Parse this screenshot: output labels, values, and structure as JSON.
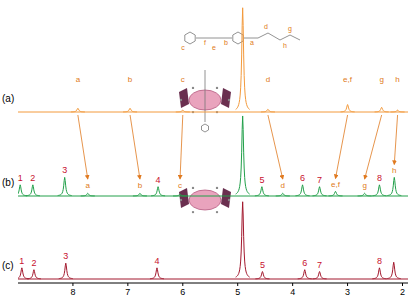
{
  "chart_data": {
    "type": "nmr_stack",
    "xlim": [
      9.0,
      1.9
    ],
    "xticks": [
      8,
      7,
      6,
      5,
      4,
      3,
      2
    ],
    "ylim": [
      0,
      115
    ],
    "tick_labels": "x",
    "series": [
      {
        "name": "(a)",
        "color": "#f39a3c",
        "x": [
          7.91,
          6.96,
          6.0,
          4.91,
          4.45,
          3.0,
          2.38,
          2.09
        ],
        "values": [
          4,
          4,
          2,
          112,
          3,
          8,
          5,
          2
        ],
        "peak_labels": [
          "a",
          "b",
          "c",
          null,
          "d",
          "e,f",
          "g",
          "h"
        ]
      },
      {
        "name": "(b)",
        "color": "#22a04a",
        "x": [
          8.96,
          8.73,
          8.15,
          7.73,
          6.78,
          6.45,
          6.05,
          4.91,
          4.56,
          4.18,
          3.82,
          3.51,
          3.22,
          2.69,
          2.42,
          2.15
        ],
        "values": [
          12,
          12,
          20,
          3,
          3,
          10,
          2,
          86,
          10,
          3,
          12,
          10,
          5,
          3,
          12,
          20
        ],
        "peak_labels": [
          "1",
          "2",
          "3",
          "a",
          "b",
          "4",
          "c",
          null,
          "5",
          "d",
          "6",
          "7",
          "e,f",
          "g",
          "8",
          "h"
        ]
      },
      {
        "name": "(c)",
        "color": "#a3192e",
        "x": [
          8.93,
          8.71,
          8.13,
          6.47,
          4.91,
          4.55,
          3.78,
          3.51,
          2.42,
          2.16
        ],
        "values": [
          12,
          10,
          17,
          12,
          83,
          8,
          10,
          8,
          12,
          18
        ],
        "peak_labels": [
          "1",
          "2",
          "3",
          "4",
          null,
          "5",
          "6",
          "7",
          "8",
          null
        ]
      }
    ],
    "structure_labels": [
      "c",
      "f",
      "e",
      "b",
      "a",
      "d",
      "g",
      "h"
    ]
  }
}
